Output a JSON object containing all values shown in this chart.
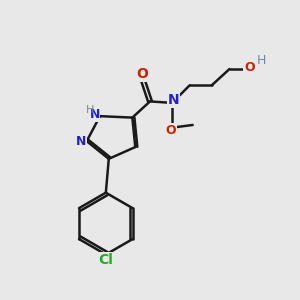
{
  "bg_color": "#e8e8e8",
  "bond_color": "#1a1a1a",
  "N_color": "#2222cc",
  "O_color": "#cc2200",
  "Cl_color": "#22aa22",
  "H_color": "#778899",
  "line_width": 1.8,
  "figsize": [
    3.0,
    3.0
  ],
  "dpi": 100,
  "xlim": [
    0,
    10
  ],
  "ylim": [
    0,
    10
  ]
}
